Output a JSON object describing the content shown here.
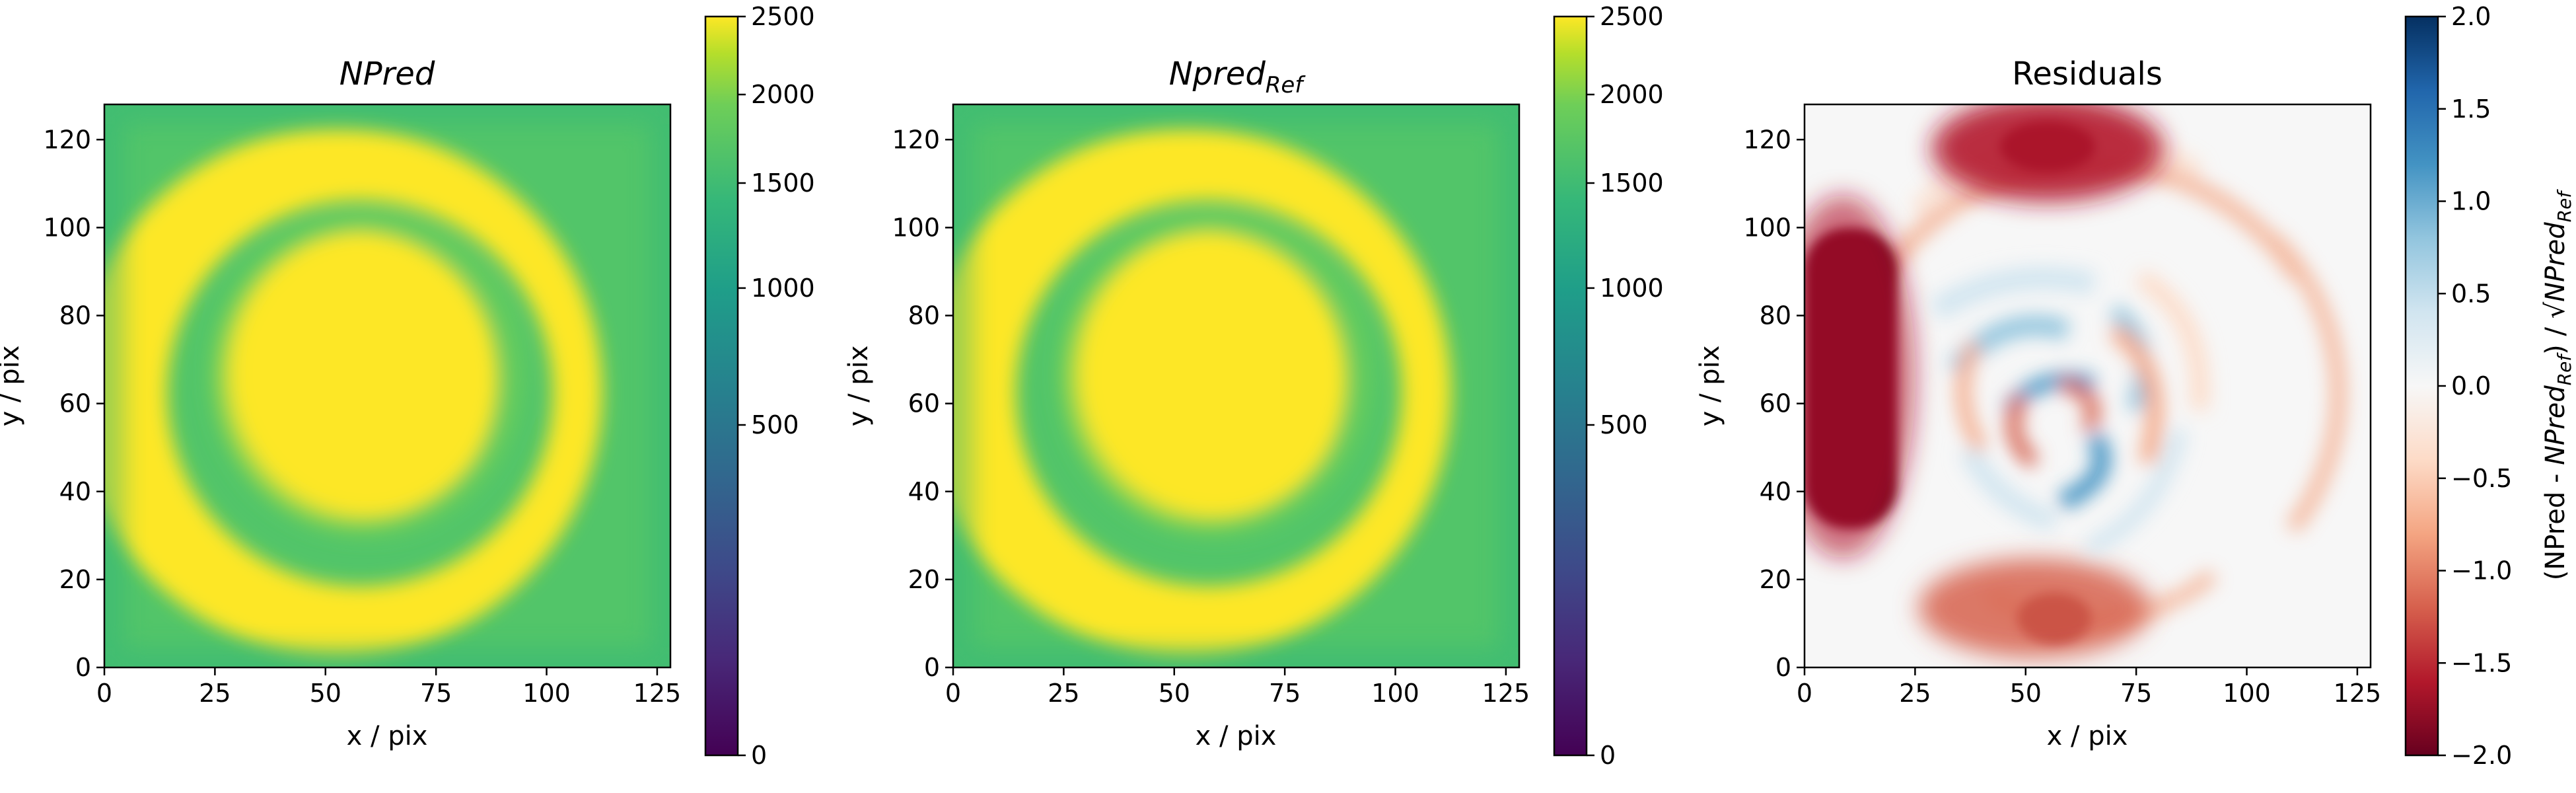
{
  "chart_data": [
    {
      "type": "heatmap",
      "title": "NPred",
      "xlabel": "x / pix",
      "ylabel": "y / pix",
      "xlim": [
        0,
        128
      ],
      "ylim": [
        0,
        128
      ],
      "x_ticks": [
        "0",
        "25",
        "50",
        "75",
        "100",
        "125"
      ],
      "y_ticks": [
        "0",
        "20",
        "40",
        "60",
        "80",
        "100",
        "120"
      ],
      "colormap": "viridis",
      "scale": "sqrt",
      "color_range": [
        0,
        2500
      ],
      "colorbar_ticks": [
        "0",
        "500",
        "1000",
        "1500",
        "2000",
        "2500"
      ],
      "features": [
        {
          "name": "bright-ring",
          "center": [
            54,
            63
          ],
          "inner_radius": 43,
          "outer_radius": 60,
          "value": 2500
        },
        {
          "name": "inner-disk",
          "center": [
            58,
            60
          ],
          "radius": 31,
          "value": 2500
        },
        {
          "name": "dim-ring",
          "center": [
            56,
            62
          ],
          "inner_radius": 31,
          "outer_radius": 43,
          "value": 1200
        },
        {
          "name": "outer-background",
          "value": 1100
        }
      ]
    },
    {
      "type": "heatmap",
      "title": "Npred",
      "title_subscript": "Ref",
      "xlabel": "x / pix",
      "ylabel": "y / pix",
      "xlim": [
        0,
        128
      ],
      "ylim": [
        0,
        128
      ],
      "x_ticks": [
        "0",
        "25",
        "50",
        "75",
        "100",
        "125"
      ],
      "y_ticks": [
        "0",
        "20",
        "40",
        "60",
        "80",
        "100",
        "120"
      ],
      "colormap": "viridis",
      "scale": "sqrt",
      "color_range": [
        0,
        2500
      ],
      "colorbar_ticks": [
        "0",
        "500",
        "1000",
        "1500",
        "2000",
        "2500"
      ],
      "features": [
        {
          "name": "bright-ring",
          "center": [
            54,
            63
          ],
          "inner_radius": 43,
          "outer_radius": 60,
          "value": 2500
        },
        {
          "name": "inner-disk",
          "center": [
            58,
            60
          ],
          "radius": 31,
          "value": 2500
        },
        {
          "name": "dim-ring",
          "center": [
            56,
            62
          ],
          "inner_radius": 31,
          "outer_radius": 43,
          "value": 1200
        },
        {
          "name": "outer-background",
          "value": 1100
        }
      ]
    },
    {
      "type": "heatmap",
      "title": "Residuals",
      "xlabel": "x / pix",
      "ylabel": "y / pix",
      "xlim": [
        0,
        128
      ],
      "ylim": [
        0,
        128
      ],
      "x_ticks": [
        "0",
        "25",
        "50",
        "75",
        "100",
        "125"
      ],
      "y_ticks": [
        "0",
        "20",
        "40",
        "60",
        "80",
        "100",
        "120"
      ],
      "colormap": "RdBu",
      "scale": "linear",
      "color_range": [
        -2.0,
        2.0
      ],
      "colorbar_ticks": [
        "−2.0",
        "−1.5",
        "−1.0",
        "−0.5",
        "0.0",
        "0.5",
        "1.0",
        "1.5",
        "2.0"
      ],
      "colorbar_label": {
        "prefix": "(NPred - ",
        "sub1_base": "NPred",
        "sub1_sub": "Ref",
        "mid": ") / √",
        "sub2_base": "NPred",
        "sub2_sub": "Ref"
      },
      "features": [
        {
          "name": "left-edge-negative",
          "x_range": [
            0,
            17
          ],
          "y_range": [
            31,
            98
          ],
          "value": -2.0
        },
        {
          "name": "top-negative-blob",
          "center": [
            55,
            117
          ],
          "value": -2.0
        },
        {
          "name": "bottom-negative-blob",
          "center": [
            55,
            12
          ],
          "value": -1.8
        },
        {
          "name": "outer-ring-negative",
          "center": [
            55,
            63
          ],
          "radius": 56,
          "value": -0.6
        },
        {
          "name": "inner-spiral-positive",
          "center": [
            55,
            60
          ],
          "value": 0.8
        },
        {
          "name": "inner-spiral-negative",
          "center": [
            52,
            60
          ],
          "value": -0.9
        }
      ]
    }
  ]
}
